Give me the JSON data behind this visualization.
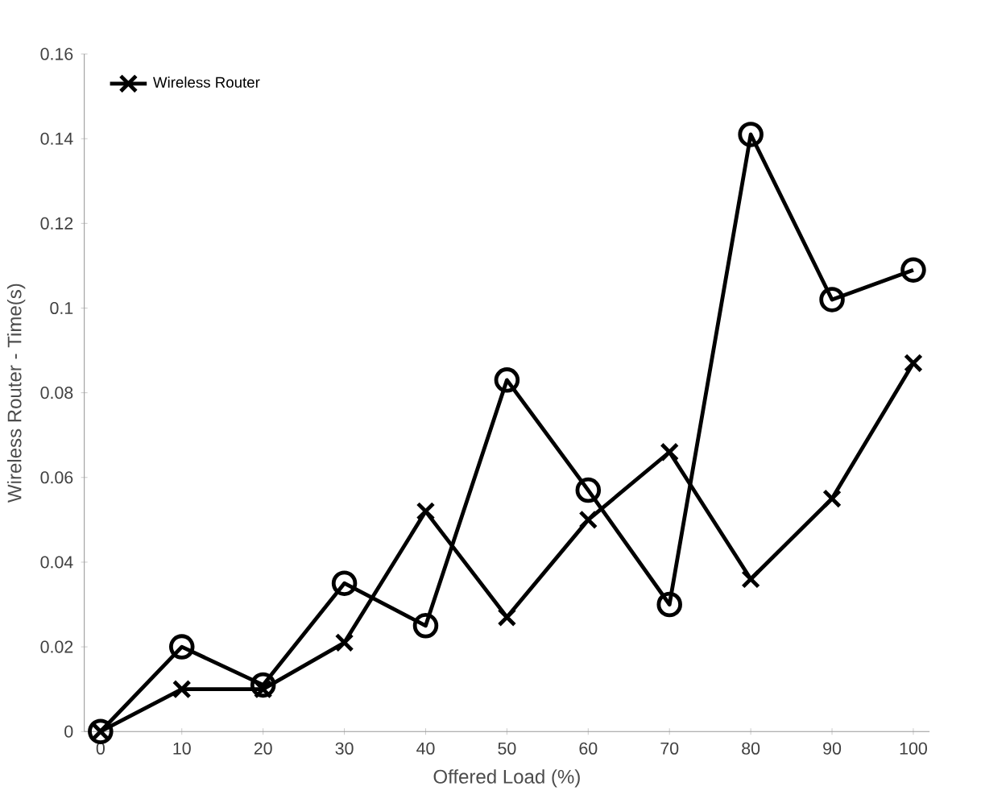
{
  "chart_data": {
    "type": "line",
    "xlabel": "Offered Load (%)",
    "ylabel": "Wireless Router - Time(s)",
    "x": [
      0,
      10,
      20,
      30,
      40,
      50,
      60,
      70,
      80,
      90,
      100
    ],
    "series": [
      {
        "color": "#000000",
        "marker": "circle",
        "values": [
          0,
          0.02,
          0.011,
          0.035,
          0.025,
          0.083,
          0.057,
          0.03,
          0.141,
          0.102,
          0.109
        ]
      },
      {
        "name": "Wireless Router",
        "color": "#000000",
        "marker": "cross",
        "values": [
          0,
          0.01,
          0.01,
          0.021,
          0.052,
          0.027,
          0.05,
          0.066,
          0.036,
          0.055,
          0.087
        ]
      }
    ],
    "xlim": [
      -2,
      102
    ],
    "xticks": [
      0,
      10,
      20,
      30,
      40,
      50,
      60,
      70,
      80,
      90,
      100
    ],
    "ylim": [
      0,
      0.16
    ],
    "yticks": [
      0,
      0.02,
      0.04,
      0.06,
      0.08,
      0.1,
      0.12,
      0.14,
      0.16
    ],
    "grid": false,
    "legend": "top left",
    "line_style": "solid"
  }
}
